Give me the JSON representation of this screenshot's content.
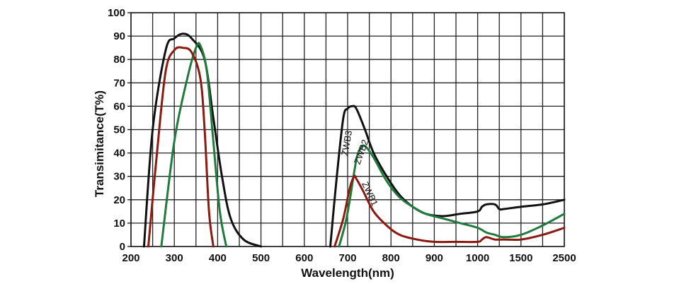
{
  "chart_data": {
    "type": "line",
    "xlabel": "Wavelength(nm)",
    "ylabel": "Transimitance(T%)",
    "x_ticks": [
      "200",
      "300",
      "400",
      "500",
      "600",
      "700",
      "800",
      "900",
      "1000",
      "1500",
      "2500"
    ],
    "y_ticks": [
      "0",
      "10",
      "20",
      "30",
      "40",
      "50",
      "60",
      "70",
      "80",
      "90",
      "100"
    ],
    "ylim": [
      0,
      100
    ],
    "x_scale": "nonlinear (linear 200-1000 nm, then 1000, 1500, 2500 nm spaced equally)",
    "grid": true,
    "legend": "none (curves labelled inline)",
    "series": [
      {
        "name": "ZWB3",
        "color": "#111111",
        "label_angle": -80,
        "points": [
          [
            230,
            0
          ],
          [
            250,
            50
          ],
          [
            280,
            84
          ],
          [
            300,
            89
          ],
          [
            320,
            91
          ],
          [
            340,
            89
          ],
          [
            370,
            80
          ],
          [
            390,
            55
          ],
          [
            410,
            30
          ],
          [
            430,
            12
          ],
          [
            460,
            3
          ],
          [
            500,
            0
          ],
          [
            660,
            0
          ],
          [
            675,
            30
          ],
          [
            690,
            55
          ],
          [
            700,
            59
          ],
          [
            710,
            60
          ],
          [
            720,
            59
          ],
          [
            740,
            50
          ],
          [
            760,
            40
          ],
          [
            790,
            30
          ],
          [
            820,
            22
          ],
          [
            850,
            17
          ],
          [
            880,
            14
          ],
          [
            920,
            13
          ],
          [
            960,
            14
          ],
          [
            1000,
            15
          ],
          [
            1050,
            17
          ],
          [
            1100,
            18
          ],
          [
            1200,
            18
          ],
          [
            1250,
            16
          ],
          [
            1300,
            16
          ],
          [
            1500,
            17
          ],
          [
            2000,
            18
          ],
          [
            2500,
            20
          ]
        ]
      },
      {
        "name": "ZWB2",
        "color": "#1f7a3c",
        "label_angle": -70,
        "points": [
          [
            270,
            0
          ],
          [
            300,
            45
          ],
          [
            330,
            72
          ],
          [
            350,
            85
          ],
          [
            360,
            86
          ],
          [
            375,
            75
          ],
          [
            390,
            45
          ],
          [
            405,
            15
          ],
          [
            420,
            0
          ],
          [
            680,
            0
          ],
          [
            695,
            10
          ],
          [
            705,
            20
          ],
          [
            720,
            37
          ],
          [
            730,
            42
          ],
          [
            740,
            43
          ],
          [
            760,
            38
          ],
          [
            790,
            28
          ],
          [
            820,
            21
          ],
          [
            850,
            17
          ],
          [
            880,
            14
          ],
          [
            920,
            12
          ],
          [
            960,
            10
          ],
          [
            1000,
            8
          ],
          [
            1100,
            6
          ],
          [
            1200,
            5
          ],
          [
            1300,
            4
          ],
          [
            1500,
            5
          ],
          [
            2000,
            9
          ],
          [
            2500,
            14
          ]
        ]
      },
      {
        "name": "ZWB1",
        "color": "#8b1a10",
        "label_angle": 65,
        "points": [
          [
            240,
            0
          ],
          [
            260,
            40
          ],
          [
            280,
            75
          ],
          [
            300,
            84
          ],
          [
            320,
            85
          ],
          [
            340,
            83
          ],
          [
            360,
            72
          ],
          [
            370,
            50
          ],
          [
            380,
            15
          ],
          [
            390,
            0
          ],
          [
            670,
            0
          ],
          [
            690,
            12
          ],
          [
            705,
            25
          ],
          [
            715,
            30
          ],
          [
            720,
            29
          ],
          [
            735,
            24
          ],
          [
            760,
            15
          ],
          [
            790,
            9
          ],
          [
            820,
            5
          ],
          [
            860,
            3
          ],
          [
            900,
            2
          ],
          [
            950,
            2
          ],
          [
            1000,
            2
          ],
          [
            1050,
            3
          ],
          [
            1100,
            4
          ],
          [
            1200,
            3
          ],
          [
            1300,
            3
          ],
          [
            1500,
            3
          ],
          [
            2000,
            5
          ],
          [
            2500,
            8
          ]
        ]
      }
    ]
  }
}
